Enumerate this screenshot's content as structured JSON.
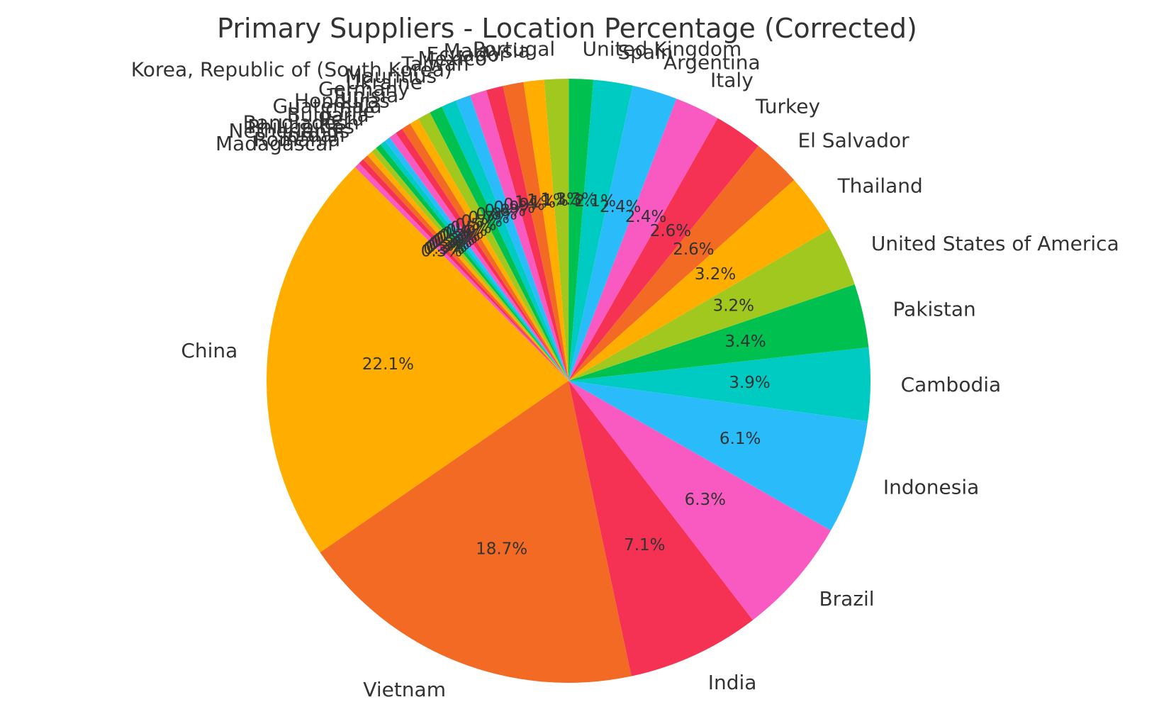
{
  "chart_data": {
    "type": "pie",
    "title": "Primary Suppliers - Location Percentage (Corrected)",
    "start_angle_deg": 135,
    "direction": "counterclockwise",
    "colors": [
      "#FFAE00",
      "#F26A23",
      "#F53254",
      "#F95AC1",
      "#2ABCFA",
      "#00CBC3",
      "#00C150",
      "#A0C81E"
    ],
    "categories": [
      "China",
      "Vietnam",
      "India",
      "Brazil",
      "Indonesia",
      "Cambodia",
      "Pakistan",
      "United States of America",
      "Thailand",
      "El Salvador",
      "Turkey",
      "Italy",
      "Argentina",
      "Spain",
      "United Kingdom",
      "Portugal",
      "Malaysia",
      "Ecuador",
      "Mexico",
      "Taiwan",
      "Korea, Republic of (South Korea)",
      "Mauritius",
      "Ukraine",
      "Germany",
      "Tunisia",
      "Honduras",
      "Guatemala",
      "Chile",
      "Bulgaria",
      "Peru",
      "Bangladesh",
      "Philippines",
      "Netherlands",
      "Jordan",
      "Romania",
      "Madagascar"
    ],
    "values": [
      22.1,
      18.7,
      7.1,
      6.3,
      6.1,
      3.9,
      3.4,
      3.2,
      3.2,
      2.6,
      2.6,
      2.4,
      2.4,
      2.1,
      1.3,
      1.3,
      1.1,
      1.1,
      0.9,
      0.9,
      0.8,
      0.8,
      0.7,
      0.7,
      0.5,
      0.5,
      0.4,
      0.4,
      0.3,
      0.3,
      0.3,
      0.3,
      0.3,
      0.3,
      0.3,
      0.3
    ],
    "value_labels": [
      "22.1%",
      "18.7%",
      "7.1%",
      "6.3%",
      "6.1%",
      "3.9%",
      "3.4%",
      "3.2%",
      "3.2%",
      "2.6%",
      "2.6%",
      "2.4%",
      "2.4%",
      "2.1%",
      "1.3%",
      "1.3%",
      "1.1%",
      "1.1%",
      "0.9%",
      "0.9%",
      "0.8%",
      "0.8%",
      "0.7%",
      "0.7%",
      "0.5%",
      "0.5%",
      "0.4%",
      "0.4%",
      "0.3%",
      "0.3%",
      "0.3%",
      "0.3%",
      "0.3%",
      "0.3%",
      "0.3%",
      "0.3%"
    ]
  }
}
